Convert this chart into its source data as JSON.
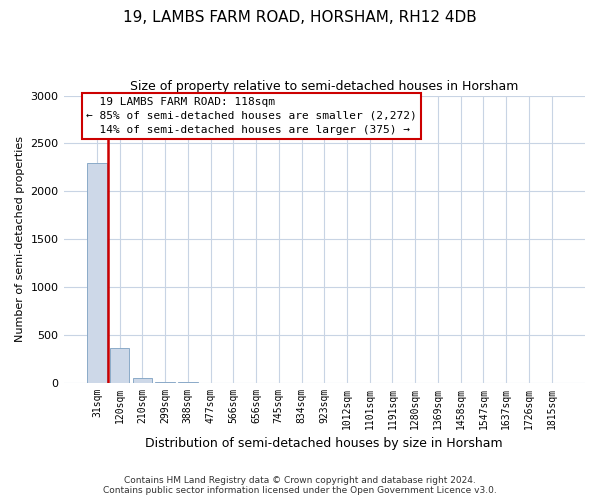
{
  "title": "19, LAMBS FARM ROAD, HORSHAM, RH12 4DB",
  "subtitle": "Size of property relative to semi-detached houses in Horsham",
  "xlabel": "Distribution of semi-detached houses by size in Horsham",
  "ylabel": "Number of semi-detached properties",
  "property_label": "19 LAMBS FARM ROAD: 118sqm",
  "pct_smaller": 85,
  "count_smaller": 2272,
  "pct_larger": 14,
  "count_larger": 375,
  "bin_labels": [
    "31sqm",
    "120sqm",
    "210sqm",
    "299sqm",
    "388sqm",
    "477sqm",
    "566sqm",
    "656sqm",
    "745sqm",
    "834sqm",
    "923sqm",
    "1012sqm",
    "1101sqm",
    "1191sqm",
    "1280sqm",
    "1369sqm",
    "1458sqm",
    "1547sqm",
    "1637sqm",
    "1726sqm",
    "1815sqm"
  ],
  "bin_values": [
    2300,
    360,
    50,
    8,
    3,
    1,
    1,
    0,
    0,
    0,
    1,
    0,
    0,
    0,
    0,
    0,
    0,
    0,
    0,
    0,
    0
  ],
  "bar_color": "#cdd8e8",
  "bar_edge_color": "#8baac8",
  "vline_color": "#cc0000",
  "annotation_box_edge_color": "#cc0000",
  "ylim": [
    0,
    3000
  ],
  "yticks": [
    0,
    500,
    1000,
    1500,
    2000,
    2500,
    3000
  ],
  "grid_color": "#c8d4e4",
  "footer_line1": "Contains HM Land Registry data © Crown copyright and database right 2024.",
  "footer_line2": "Contains public sector information licensed under the Open Government Licence v3.0."
}
